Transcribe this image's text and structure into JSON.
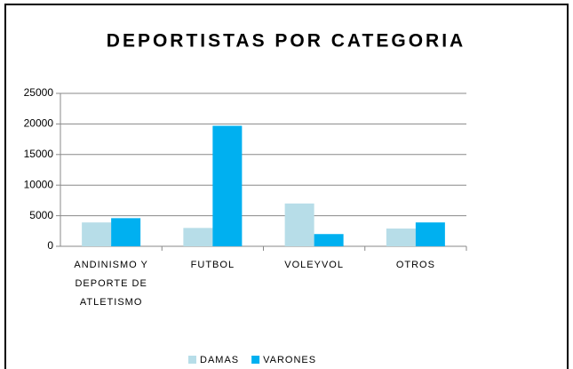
{
  "chart_data": {
    "type": "bar",
    "title": "DEPORTISTAS POR CATEGORIA",
    "categories": [
      "ANDINISMO Y DEPORTE DE ATLETISMO",
      "FUTBOL",
      "VOLEYVOL",
      "OTROS"
    ],
    "series": [
      {
        "name": "DAMAS",
        "color": "#b7dde8",
        "values": [
          3900,
          3000,
          7000,
          2900
        ]
      },
      {
        "name": "VARONES",
        "color": "#00b0f0",
        "values": [
          4600,
          19700,
          2000,
          3900
        ]
      }
    ],
    "ylim": [
      0,
      25000
    ],
    "yticks": [
      0,
      5000,
      10000,
      15000,
      20000,
      25000
    ],
    "grid": true,
    "legend": "bottom"
  }
}
